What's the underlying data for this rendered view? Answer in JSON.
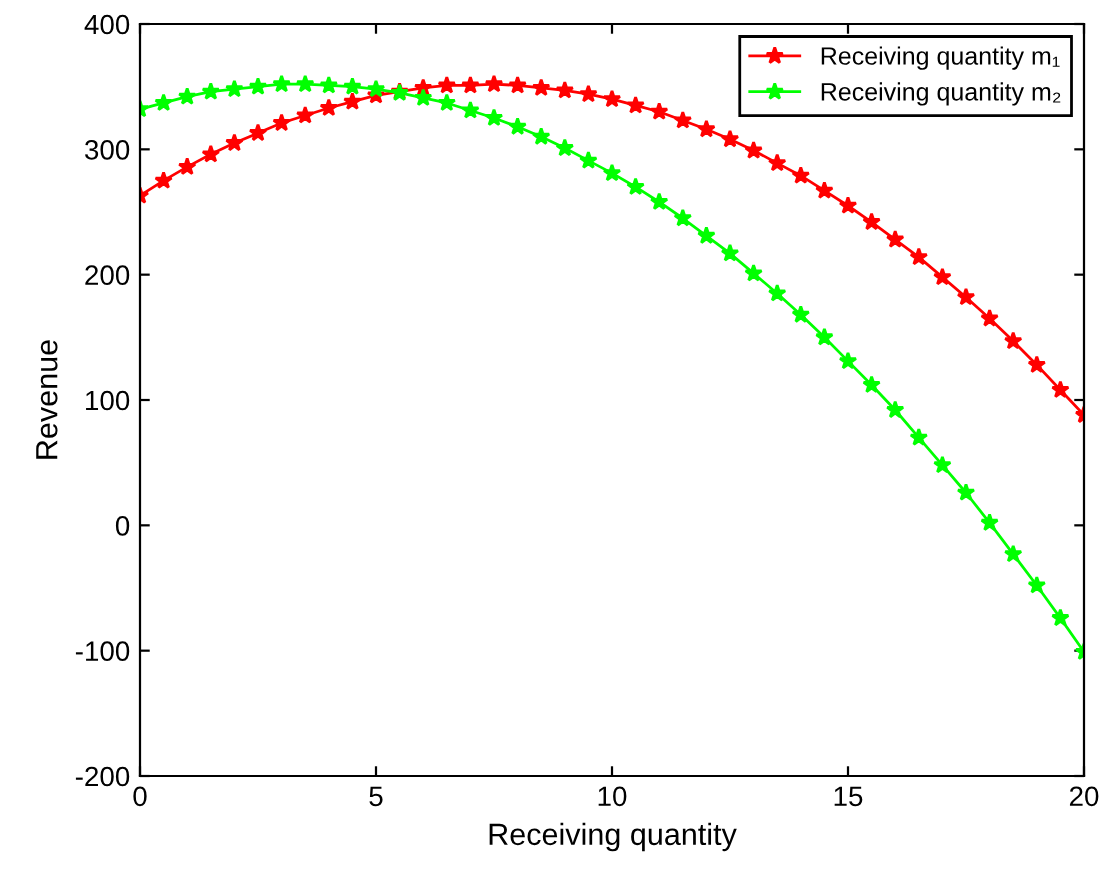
{
  "chart_data": {
    "type": "line",
    "xlabel": "Receiving quantity",
    "ylabel": "Revenue",
    "x": [
      0,
      0.5,
      1,
      1.5,
      2,
      2.5,
      3,
      3.5,
      4,
      4.5,
      5,
      5.5,
      6,
      6.5,
      7,
      7.5,
      8,
      8.5,
      9,
      9.5,
      10,
      10.5,
      11,
      11.5,
      12,
      12.5,
      13,
      13.5,
      14,
      14.5,
      15,
      15.5,
      16,
      16.5,
      17,
      17.5,
      18,
      18.5,
      19,
      19.5,
      20
    ],
    "series": [
      {
        "name": "Receiving quantity m₁",
        "color": "#ff0000",
        "values": [
          263,
          275,
          286,
          296,
          305,
          313,
          321,
          327,
          333,
          338,
          343,
          346,
          349,
          351,
          351,
          352,
          351,
          349,
          347,
          344,
          340,
          335,
          330,
          323,
          316,
          308,
          299,
          289,
          279,
          267,
          255,
          242,
          228,
          214,
          198,
          182,
          165,
          147,
          128,
          108,
          88
        ]
      },
      {
        "name": "Receiving quantity m₂",
        "color": "#00ff00",
        "values": [
          332,
          337,
          342,
          346,
          348,
          350,
          352,
          352,
          351,
          350,
          348,
          345,
          341,
          337,
          331,
          325,
          318,
          310,
          301,
          291,
          281,
          270,
          258,
          245,
          231,
          217,
          201,
          185,
          168,
          150,
          131,
          112,
          92,
          70,
          48,
          26,
          2,
          -23,
          -48,
          -74,
          -101
        ]
      }
    ],
    "xlim": [
      0,
      20
    ],
    "xticks": [
      0,
      5,
      10,
      15,
      20
    ],
    "ylim": [
      -200,
      400
    ],
    "yticks": [
      -200,
      -100,
      0,
      100,
      200,
      300,
      400
    ],
    "grid": false,
    "legend": "top right",
    "marker": "star",
    "line_style": "solid"
  }
}
